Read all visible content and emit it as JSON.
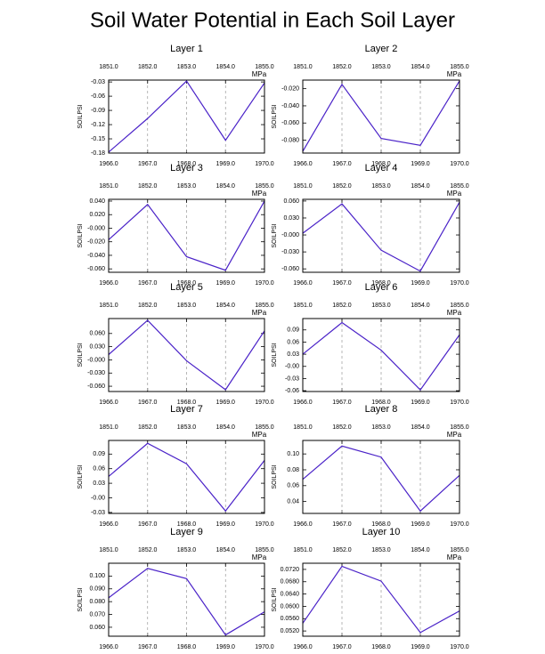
{
  "title": "Soil Water Potential in Each Soil Layer",
  "chart_data": [
    {
      "type": "line",
      "title": "Layer 1",
      "ylabel": "SOILPSI",
      "units": "MPa",
      "x": [
        1966,
        1967,
        1968,
        1969,
        1970
      ],
      "xlim": [
        1966,
        1970
      ],
      "xticks": [
        {
          "value": 1966,
          "label": "1966.0"
        },
        {
          "value": 1967,
          "label": "1967.0"
        },
        {
          "value": 1968,
          "label": "1968.0"
        },
        {
          "value": 1969,
          "label": "1969.0"
        },
        {
          "value": 1970,
          "label": "1970.0"
        }
      ],
      "x2lim": [
        1851,
        1855
      ],
      "x2ticks": [
        {
          "value": 1851,
          "label": "1851.0"
        },
        {
          "value": 1852,
          "label": "1852.0"
        },
        {
          "value": 1853,
          "label": "1853.0"
        },
        {
          "value": 1854,
          "label": "1854.0"
        },
        {
          "value": 1855,
          "label": "1855.0"
        }
      ],
      "xtick_color": "#ff0000",
      "x2tick_color": "#0000ff",
      "xgrid": true,
      "ylim": [
        -0.18,
        -0.026
      ],
      "yticks": [
        -0.18,
        -0.15,
        -0.12,
        -0.09,
        -0.06,
        -0.03
      ],
      "series": [
        {
          "color": "#4a22c8",
          "values": [
            -0.178,
            -0.107,
            -0.028,
            -0.153,
            -0.032
          ]
        }
      ]
    },
    {
      "type": "line",
      "title": "Layer 2",
      "ylabel": "SOILPSI",
      "units": "MPa",
      "x": [
        1966,
        1967,
        1968,
        1969,
        1970
      ],
      "xlim": [
        1966,
        1970
      ],
      "xticks": [
        {
          "value": 1966,
          "label": "1966.0"
        },
        {
          "value": 1967,
          "label": "1967.0"
        },
        {
          "value": 1968,
          "label": "1968.0"
        },
        {
          "value": 1969,
          "label": "1969.0"
        },
        {
          "value": 1970,
          "label": "1970.0"
        }
      ],
      "x2lim": [
        1851,
        1855
      ],
      "x2ticks": [
        {
          "value": 1851,
          "label": "1851.0"
        },
        {
          "value": 1852,
          "label": "1852.0"
        },
        {
          "value": 1853,
          "label": "1853.0"
        },
        {
          "value": 1854,
          "label": "1854.0"
        },
        {
          "value": 1855,
          "label": "1855.0"
        }
      ],
      "xtick_color": "#ff0000",
      "x2tick_color": "#0000ff",
      "xgrid": true,
      "ylim": [
        -0.095,
        -0.01
      ],
      "yticks": [
        {
          "value": -0.08,
          "label": "-0.080"
        },
        {
          "value": -0.06,
          "label": "-0.060"
        },
        {
          "value": -0.04,
          "label": "-0.040"
        },
        {
          "value": -0.02,
          "label": "-0.020"
        }
      ],
      "series": [
        {
          "color": "#4a22c8",
          "values": [
            -0.093,
            -0.015,
            -0.078,
            -0.086,
            -0.011
          ]
        }
      ]
    },
    {
      "type": "line",
      "title": "Layer 3",
      "ylabel": "SOILPSI",
      "units": "MPa",
      "x": [
        1966,
        1967,
        1968,
        1969,
        1970
      ],
      "xlim": [
        1966,
        1970
      ],
      "xticks": [
        {
          "value": 1966,
          "label": "1966.0"
        },
        {
          "value": 1967,
          "label": "1967.0"
        },
        {
          "value": 1968,
          "label": "1968.0"
        },
        {
          "value": 1969,
          "label": "1969.0"
        },
        {
          "value": 1970,
          "label": "1970.0"
        }
      ],
      "x2lim": [
        1851,
        1855
      ],
      "x2ticks": [
        {
          "value": 1851,
          "label": "1851.0"
        },
        {
          "value": 1852,
          "label": "1852.0"
        },
        {
          "value": 1853,
          "label": "1853.0"
        },
        {
          "value": 1854,
          "label": "1854.0"
        },
        {
          "value": 1855,
          "label": "1855.0"
        }
      ],
      "xtick_color": "#ff0000",
      "x2tick_color": "#0000ff",
      "xgrid": true,
      "ylim": [
        -0.065,
        0.0426
      ],
      "yticks": [
        {
          "value": -0.06,
          "label": "-0.060"
        },
        {
          "value": -0.04,
          "label": "-0.040"
        },
        {
          "value": -0.02,
          "label": "-0.020"
        },
        {
          "value": 0,
          "label": "-0.000"
        },
        {
          "value": 0.02,
          "label": "0.020"
        },
        {
          "value": 0.04,
          "label": "0.040"
        }
      ],
      "series": [
        {
          "color": "#4a22c8",
          "values": [
            -0.017,
            0.035,
            -0.042,
            -0.062,
            0.04
          ]
        }
      ]
    },
    {
      "type": "line",
      "title": "Layer 4",
      "ylabel": "SOILPSI",
      "units": "MPa",
      "x": [
        1966,
        1967,
        1968,
        1969,
        1970
      ],
      "xlim": [
        1966,
        1970
      ],
      "xticks": [
        {
          "value": 1966,
          "label": "1966.0"
        },
        {
          "value": 1967,
          "label": "1967.0"
        },
        {
          "value": 1968,
          "label": "1968.0"
        },
        {
          "value": 1969,
          "label": "1969.0"
        },
        {
          "value": 1970,
          "label": "1970.0"
        }
      ],
      "x2lim": [
        1851,
        1855
      ],
      "x2ticks": [
        {
          "value": 1851,
          "label": "1851.0"
        },
        {
          "value": 1852,
          "label": "1852.0"
        },
        {
          "value": 1853,
          "label": "1853.0"
        },
        {
          "value": 1854,
          "label": "1854.0"
        },
        {
          "value": 1855,
          "label": "1855.0"
        }
      ],
      "xtick_color": "#ff0000",
      "x2tick_color": "#0000ff",
      "xgrid": true,
      "ylim": [
        -0.066,
        0.063
      ],
      "yticks": [
        {
          "value": -0.06,
          "label": "-0.060"
        },
        {
          "value": -0.03,
          "label": "-0.030"
        },
        {
          "value": 0,
          "label": "-0.000"
        },
        {
          "value": 0.03,
          "label": "0.030"
        },
        {
          "value": 0.06,
          "label": "0.060"
        }
      ],
      "series": [
        {
          "color": "#4a22c8",
          "values": [
            0.003,
            0.055,
            -0.027,
            -0.064,
            0.058
          ]
        }
      ]
    },
    {
      "type": "line",
      "title": "Layer 5",
      "ylabel": "SOILPSI",
      "units": "MPa",
      "x": [
        1966,
        1967,
        1968,
        1969,
        1970
      ],
      "xlim": [
        1966,
        1970
      ],
      "xticks": [
        {
          "value": 1966,
          "label": "1966.0"
        },
        {
          "value": 1967,
          "label": "1967.0"
        },
        {
          "value": 1968,
          "label": "1968.0"
        },
        {
          "value": 1969,
          "label": "1969.0"
        },
        {
          "value": 1970,
          "label": "1970.0"
        }
      ],
      "x2lim": [
        1851,
        1855
      ],
      "x2ticks": [
        {
          "value": 1851,
          "label": "1851.0"
        },
        {
          "value": 1852,
          "label": "1852.0"
        },
        {
          "value": 1853,
          "label": "1853.0"
        },
        {
          "value": 1854,
          "label": "1854.0"
        },
        {
          "value": 1855,
          "label": "1855.0"
        }
      ],
      "xtick_color": "#ff0000",
      "x2tick_color": "#0000ff",
      "xgrid": true,
      "ylim": [
        -0.072,
        0.094
      ],
      "yticks": [
        {
          "value": -0.06,
          "label": "-0.060"
        },
        {
          "value": -0.03,
          "label": "-0.030"
        },
        {
          "value": 0,
          "label": "-0.000"
        },
        {
          "value": 0.03,
          "label": "0.030"
        },
        {
          "value": 0.06,
          "label": "0.060"
        }
      ],
      "series": [
        {
          "color": "#4a22c8",
          "values": [
            0.012,
            0.09,
            -0.002,
            -0.068,
            0.066
          ]
        }
      ]
    },
    {
      "type": "line",
      "title": "Layer 6",
      "ylabel": "SOILPSI",
      "units": "MPa",
      "x": [
        1966,
        1967,
        1968,
        1969,
        1970
      ],
      "xlim": [
        1966,
        1970
      ],
      "xticks": [
        {
          "value": 1966,
          "label": "1966.0"
        },
        {
          "value": 1967,
          "label": "1967.0"
        },
        {
          "value": 1968,
          "label": "1968.0"
        },
        {
          "value": 1969,
          "label": "1969.0"
        },
        {
          "value": 1970,
          "label": "1970.0"
        }
      ],
      "x2lim": [
        1851,
        1855
      ],
      "x2ticks": [
        {
          "value": 1851,
          "label": "1851.0"
        },
        {
          "value": 1852,
          "label": "1852.0"
        },
        {
          "value": 1853,
          "label": "1853.0"
        },
        {
          "value": 1854,
          "label": "1854.0"
        },
        {
          "value": 1855,
          "label": "1855.0"
        }
      ],
      "xtick_color": "#ff0000",
      "x2tick_color": "#0000ff",
      "xgrid": true,
      "ylim": [
        -0.062,
        0.118
      ],
      "yticks": [
        -0.06,
        -0.03,
        {
          "value": 0,
          "label": "-0.00"
        },
        0.03,
        0.06,
        0.09
      ],
      "series": [
        {
          "color": "#4a22c8",
          "values": [
            0.03,
            0.108,
            0.04,
            -0.058,
            0.078
          ]
        }
      ]
    },
    {
      "type": "line",
      "title": "Layer 7",
      "ylabel": "SOILPSI",
      "units": "MPa",
      "x": [
        1966,
        1967,
        1968,
        1969,
        1970
      ],
      "xlim": [
        1966,
        1970
      ],
      "xticks": [
        {
          "value": 1966,
          "label": "1966.0"
        },
        {
          "value": 1967,
          "label": "1967.0"
        },
        {
          "value": 1968,
          "label": "1968.0"
        },
        {
          "value": 1969,
          "label": "1969.0"
        },
        {
          "value": 1970,
          "label": "1970.0"
        }
      ],
      "x2lim": [
        1851,
        1855
      ],
      "x2ticks": [
        {
          "value": 1851,
          "label": "1851.0"
        },
        {
          "value": 1852,
          "label": "1852.0"
        },
        {
          "value": 1853,
          "label": "1853.0"
        },
        {
          "value": 1854,
          "label": "1854.0"
        },
        {
          "value": 1855,
          "label": "1855.0"
        }
      ],
      "xtick_color": "#ff0000",
      "x2tick_color": "#0000ff",
      "xgrid": true,
      "ylim": [
        -0.032,
        0.118
      ],
      "yticks": [
        -0.03,
        {
          "value": 0,
          "label": "-0.00"
        },
        0.03,
        0.06,
        0.09
      ],
      "series": [
        {
          "color": "#4a22c8",
          "values": [
            0.044,
            0.112,
            0.07,
            -0.027,
            0.077
          ]
        }
      ]
    },
    {
      "type": "line",
      "title": "Layer 8",
      "ylabel": "SOILPSI",
      "units": "MPa",
      "x": [
        1966,
        1967,
        1968,
        1969,
        1970
      ],
      "xlim": [
        1966,
        1970
      ],
      "xticks": [
        {
          "value": 1966,
          "label": "1966.0"
        },
        {
          "value": 1967,
          "label": "1967.0"
        },
        {
          "value": 1968,
          "label": "1968.0"
        },
        {
          "value": 1969,
          "label": "1969.0"
        },
        {
          "value": 1970,
          "label": "1970.0"
        }
      ],
      "x2lim": [
        1851,
        1855
      ],
      "x2ticks": [
        {
          "value": 1851,
          "label": "1851.0"
        },
        {
          "value": 1852,
          "label": "1852.0"
        },
        {
          "value": 1853,
          "label": "1853.0"
        },
        {
          "value": 1854,
          "label": "1854.0"
        },
        {
          "value": 1855,
          "label": "1855.0"
        }
      ],
      "xtick_color": "#ff0000",
      "x2tick_color": "#0000ff",
      "xgrid": true,
      "ylim": [
        0.025,
        0.117
      ],
      "yticks": [
        0.04,
        0.06,
        0.08,
        {
          "value": 0.1,
          "label": "0.10"
        }
      ],
      "series": [
        {
          "color": "#4a22c8",
          "values": [
            0.068,
            0.11,
            0.096,
            0.028,
            0.073
          ]
        }
      ]
    },
    {
      "type": "line",
      "title": "Layer 9",
      "ylabel": "SOILPSI",
      "units": "MPa",
      "x": [
        1966,
        1967,
        1968,
        1969,
        1970
      ],
      "xlim": [
        1966,
        1970
      ],
      "xticks": [
        {
          "value": 1966,
          "label": "1966.0"
        },
        {
          "value": 1967,
          "label": "1967.0"
        },
        {
          "value": 1968,
          "label": "1968.0"
        },
        {
          "value": 1969,
          "label": "1969.0"
        },
        {
          "value": 1970,
          "label": "1970.0"
        }
      ],
      "x2lim": [
        1851,
        1855
      ],
      "x2ticks": [
        {
          "value": 1851,
          "label": "1851.0"
        },
        {
          "value": 1852,
          "label": "1852.0"
        },
        {
          "value": 1853,
          "label": "1853.0"
        },
        {
          "value": 1854,
          "label": "1854.0"
        },
        {
          "value": 1855,
          "label": "1855.0"
        }
      ],
      "xtick_color": "#ff0000",
      "x2tick_color": "#0000ff",
      "xgrid": true,
      "ylim": [
        0.053,
        0.11
      ],
      "yticks": [
        {
          "value": 0.06,
          "label": "0.060"
        },
        {
          "value": 0.07,
          "label": "0.070"
        },
        {
          "value": 0.08,
          "label": "0.080"
        },
        {
          "value": 0.09,
          "label": "0.090"
        },
        {
          "value": 0.1,
          "label": "0.100"
        }
      ],
      "series": [
        {
          "color": "#4a22c8",
          "values": [
            0.083,
            0.106,
            0.098,
            0.054,
            0.072
          ]
        }
      ]
    },
    {
      "type": "line",
      "title": "Layer 10",
      "ylabel": "SOILPSI",
      "units": "MPa",
      "x": [
        1966,
        1967,
        1968,
        1969,
        1970
      ],
      "xlim": [
        1966,
        1970
      ],
      "xticks": [
        {
          "value": 1966,
          "label": "1966.0"
        },
        {
          "value": 1967,
          "label": "1967.0"
        },
        {
          "value": 1968,
          "label": "1968.0"
        },
        {
          "value": 1969,
          "label": "1969.0"
        },
        {
          "value": 1970,
          "label": "1970.0"
        }
      ],
      "x2lim": [
        1851,
        1855
      ],
      "x2ticks": [
        {
          "value": 1851,
          "label": "1851.0"
        },
        {
          "value": 1852,
          "label": "1852.0"
        },
        {
          "value": 1853,
          "label": "1853.0"
        },
        {
          "value": 1854,
          "label": "1854.0"
        },
        {
          "value": 1855,
          "label": "1855.0"
        }
      ],
      "xtick_color": "#ff0000",
      "x2tick_color": "#0000ff",
      "xgrid": true,
      "ylim": [
        0.0503,
        0.074
      ],
      "yticks": [
        {
          "value": 0.052,
          "label": "0.0520"
        },
        {
          "value": 0.056,
          "label": "0.0560"
        },
        {
          "value": 0.06,
          "label": "0.0600"
        },
        {
          "value": 0.064,
          "label": "0.0640"
        },
        {
          "value": 0.068,
          "label": "0.0680"
        },
        {
          "value": 0.072,
          "label": "0.0720"
        }
      ],
      "series": [
        {
          "color": "#4a22c8",
          "values": [
            0.0545,
            0.073,
            0.0682,
            0.0515,
            0.0585
          ]
        }
      ]
    }
  ]
}
